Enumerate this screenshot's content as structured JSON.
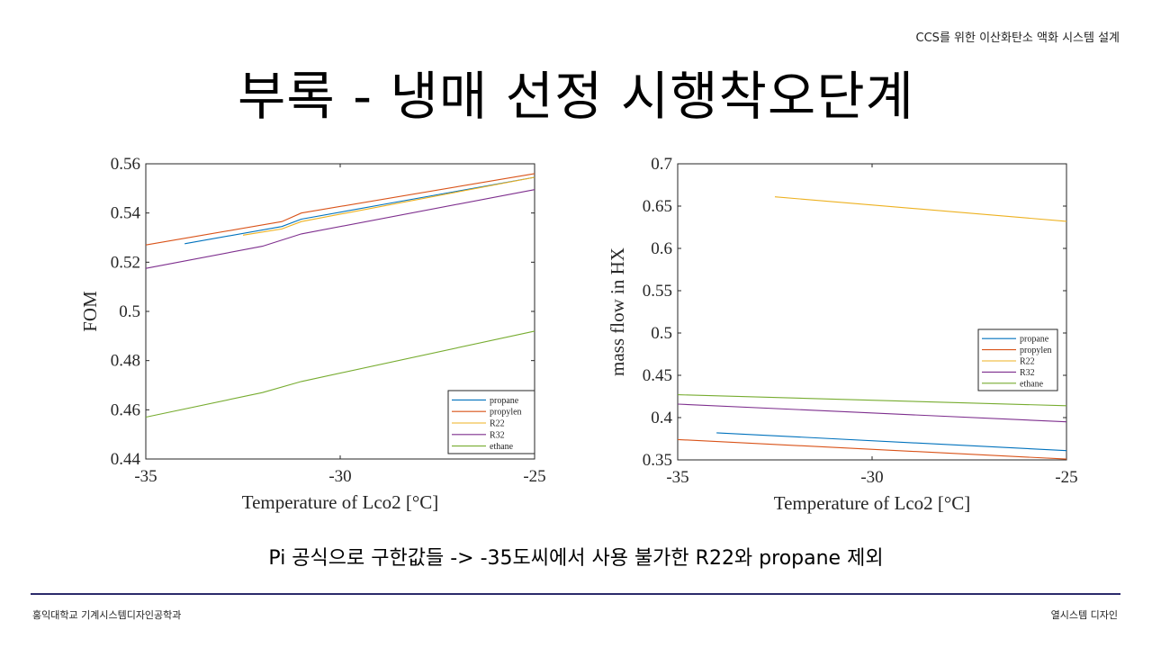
{
  "slide": {
    "header": "CCS를 위한 이산화탄소 액화 시스템 설계",
    "title": "부록 - 냉매 선정 시행착오단계",
    "caption": "Pi 공식으로 구한값들 -> -35도씨에서 사용 불가한 R22와 propane 제외",
    "footer_left": "홍익대학교 기계시스템디자인공학과",
    "footer_right": "열시스템 디자인"
  },
  "colors": {
    "propane": "#0072BD",
    "propylen": "#D95319",
    "R22": "#EDB120",
    "R32": "#7E2F8E",
    "ethane": "#77AC30",
    "footer_line": "#2b2a6b"
  },
  "chart_data": [
    {
      "type": "line",
      "xlabel": "Temperature of Lco2 [°C]",
      "ylabel": "FOM",
      "xlim": [
        -35,
        -25
      ],
      "ylim": [
        0.44,
        0.56
      ],
      "xticks": [
        -35,
        -30,
        -25
      ],
      "yticks": [
        0.44,
        0.46,
        0.48,
        0.5,
        0.52,
        0.54,
        0.56
      ],
      "xtick_labels": [
        "-35",
        "-30",
        "-25"
      ],
      "ytick_labels": [
        "0.44",
        "0.46",
        "0.48",
        "0.5",
        "0.52",
        "0.54",
        "0.56"
      ],
      "legend_position": "bottom-right",
      "series": [
        {
          "name": "propane",
          "color": "#0072BD",
          "x": [
            -34,
            -31.5,
            -31,
            -25
          ],
          "y": [
            0.5275,
            0.5345,
            0.5375,
            0.5545
          ]
        },
        {
          "name": "propylen",
          "color": "#D95319",
          "x": [
            -35,
            -31.5,
            -31,
            -25
          ],
          "y": [
            0.527,
            0.5365,
            0.54,
            0.556
          ]
        },
        {
          "name": "R22",
          "color": "#EDB120",
          "x": [
            -32.5,
            -31.5,
            -31,
            -25
          ],
          "y": [
            0.531,
            0.5335,
            0.5365,
            0.5545
          ]
        },
        {
          "name": "R32",
          "color": "#7E2F8E",
          "x": [
            -35,
            -32,
            -31,
            -25
          ],
          "y": [
            0.5175,
            0.5265,
            0.5315,
            0.5495
          ]
        },
        {
          "name": "ethane",
          "color": "#77AC30",
          "x": [
            -35,
            -32,
            -31,
            -25
          ],
          "y": [
            0.457,
            0.467,
            0.4715,
            0.492
          ]
        }
      ]
    },
    {
      "type": "line",
      "xlabel": "Temperature of Lco2 [°C]",
      "ylabel": "mass flow in HX",
      "xlim": [
        -35,
        -25
      ],
      "ylim": [
        0.35,
        0.7
      ],
      "xticks": [
        -35,
        -30,
        -25
      ],
      "yticks": [
        0.35,
        0.4,
        0.45,
        0.5,
        0.55,
        0.6,
        0.65,
        0.7
      ],
      "xtick_labels": [
        "-35",
        "-30",
        "-25"
      ],
      "ytick_labels": [
        "0.35",
        "0.4",
        "0.45",
        "0.5",
        "0.55",
        "0.6",
        "0.65",
        "0.7"
      ],
      "legend_position": "middle-right",
      "series": [
        {
          "name": "propane",
          "color": "#0072BD",
          "x": [
            -34,
            -25
          ],
          "y": [
            0.382,
            0.361
          ]
        },
        {
          "name": "propylen",
          "color": "#D95319",
          "x": [
            -35,
            -25
          ],
          "y": [
            0.374,
            0.351
          ]
        },
        {
          "name": "R22",
          "color": "#EDB120",
          "x": [
            -32.5,
            -25
          ],
          "y": [
            0.661,
            0.632
          ]
        },
        {
          "name": "R32",
          "color": "#7E2F8E",
          "x": [
            -35,
            -25
          ],
          "y": [
            0.416,
            0.395
          ]
        },
        {
          "name": "ethane",
          "color": "#77AC30",
          "x": [
            -35,
            -25
          ],
          "y": [
            0.427,
            0.414
          ]
        }
      ]
    }
  ]
}
